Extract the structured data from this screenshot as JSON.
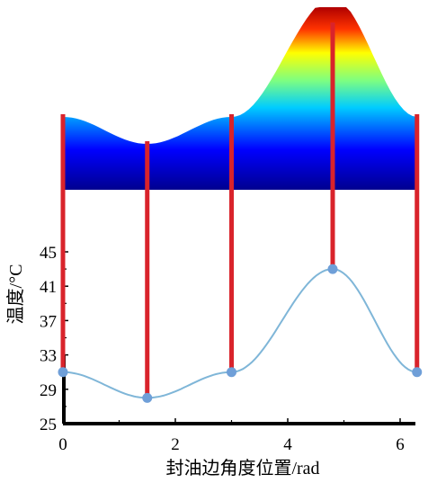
{
  "chart_data": {
    "type": "line",
    "title": "",
    "xlabel": "封油边角度位置/rad",
    "ylabel": "温度/°C",
    "xlim": [
      0,
      6.5
    ],
    "ylim": [
      25,
      47
    ],
    "x_ticks": [
      "0",
      "2",
      "4",
      "6"
    ],
    "y_ticks": [
      "25",
      "29",
      "33",
      "37",
      "41",
      "45"
    ],
    "series": [
      {
        "points": [
          {
            "x": 0.0,
            "y": 31.0
          },
          {
            "x": 1.5,
            "y": 28.0
          },
          {
            "x": 3.0,
            "y": 31.0
          },
          {
            "x": 4.8,
            "y": 43.0
          },
          {
            "x": 6.3,
            "y": 31.0
          }
        ]
      }
    ],
    "colors": {
      "curve": "#7fb6d8",
      "markers": "#6f9fd8",
      "probe_rods": "#d9232b",
      "colormap": [
        "#00008f",
        "#0000ff",
        "#00ffff",
        "#ffff00",
        "#ff0000",
        "#800000"
      ]
    },
    "grid": false,
    "legend": "none"
  }
}
